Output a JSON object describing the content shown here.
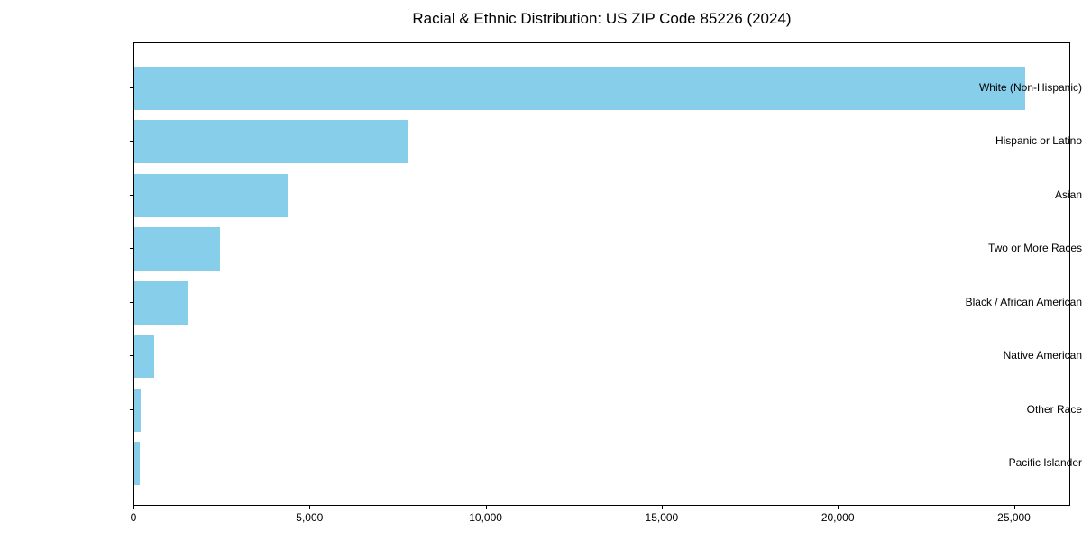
{
  "title": "Racial & Ethnic Distribution: US ZIP Code 85226 (2024)",
  "chart_data": {
    "type": "bar",
    "orientation": "horizontal",
    "title": "Racial & Ethnic Distribution: US ZIP Code 85226 (2024)",
    "xlabel": "",
    "ylabel": "",
    "categories": [
      "White (Non-Hispanic)",
      "Hispanic or Latino",
      "Asian",
      "Two or More Races",
      "Black / African American",
      "Native American",
      "Other Race",
      "Pacific Islander"
    ],
    "values": [
      25300,
      7780,
      4350,
      2430,
      1540,
      560,
      185,
      150
    ],
    "bar_color": "#87CEEB",
    "xlim": [
      0,
      26600
    ],
    "x_ticks": [
      0,
      5000,
      10000,
      15000,
      20000,
      25000
    ],
    "x_tick_labels": [
      "0",
      "5,000",
      "10,000",
      "15,000",
      "20,000",
      "25,000"
    ],
    "grid": false,
    "legend_position": "none",
    "axis_color": "#000000",
    "text_color": "#000000"
  }
}
